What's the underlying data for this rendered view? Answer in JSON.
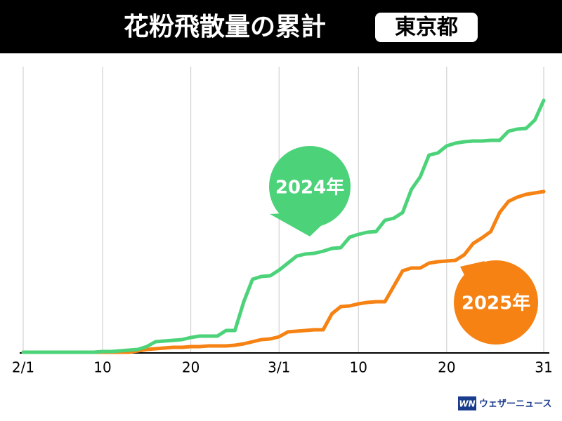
{
  "chart_data": {
    "type": "line",
    "title": "花粉飛散量の累計",
    "region": "東京都",
    "logo": "WN",
    "source": "ウェザーニュース",
    "categories": [
      "2/1",
      null,
      null,
      null,
      null,
      null,
      null,
      null,
      null,
      "10",
      null,
      null,
      null,
      null,
      null,
      null,
      null,
      null,
      null,
      "20",
      null,
      null,
      null,
      null,
      null,
      null,
      null,
      null,
      null,
      "3/1",
      null,
      null,
      null,
      null,
      null,
      null,
      null,
      null,
      "10",
      null,
      null,
      null,
      null,
      null,
      null,
      null,
      null,
      null,
      "20",
      null,
      null,
      null,
      null,
      null,
      null,
      null,
      null,
      null,
      null,
      "31"
    ],
    "ylim": [
      0,
      102
    ],
    "grid": true,
    "series": [
      {
        "name": "2024年",
        "color": "#4cd37a",
        "values": [
          0.25,
          0.25,
          0.25,
          0.25,
          0.25,
          0.25,
          0.25,
          0.25,
          0.25,
          0.5,
          0.5,
          0.75,
          1,
          1.25,
          2.25,
          4,
          4.25,
          4.5,
          4.75,
          5.5,
          6,
          6,
          6,
          8,
          8,
          18.25,
          26.25,
          27.25,
          27.5,
          29.5,
          32,
          34.5,
          35.25,
          35.5,
          36.25,
          37.25,
          37.5,
          41.25,
          42.25,
          43,
          43.25,
          47.25,
          48,
          50,
          58.25,
          62.75,
          70.5,
          71.25,
          73.75,
          74.75,
          75.25,
          75.5,
          75.5,
          75.75,
          75.75,
          79,
          79.75,
          80,
          83,
          90
        ]
      },
      {
        "name": "2025年",
        "color": "#f58212",
        "values": [
          0.25,
          0.25,
          0.25,
          0.25,
          0.25,
          0.25,
          0.25,
          0.25,
          0.25,
          0.25,
          0.25,
          0.25,
          0.25,
          0.75,
          1.25,
          1.5,
          1.75,
          2,
          2,
          2.25,
          2.25,
          2.5,
          2.5,
          2.5,
          2.75,
          3.25,
          4,
          4.75,
          5,
          5.75,
          7.5,
          7.75,
          8,
          8.25,
          8.25,
          14,
          16.5,
          16.75,
          17.5,
          18,
          18.25,
          18.25,
          23.75,
          29.25,
          30.25,
          30.25,
          32,
          32.5,
          32.75,
          33,
          35,
          39,
          41,
          43.25,
          50,
          54,
          55.5,
          56.5,
          57,
          57.5
        ]
      }
    ]
  }
}
